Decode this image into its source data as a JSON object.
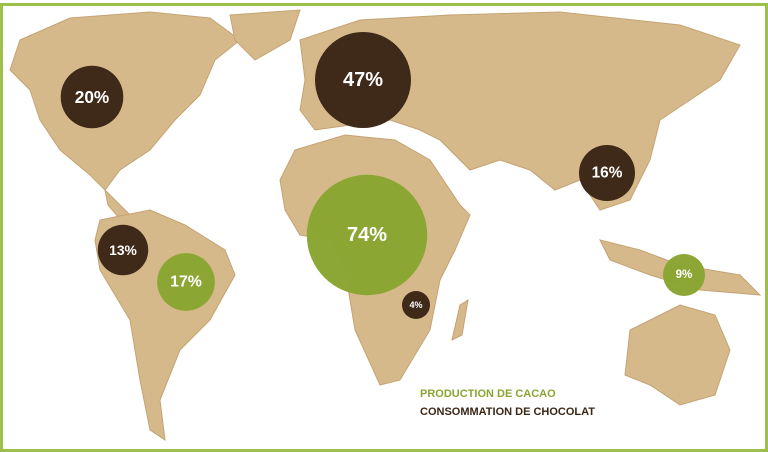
{
  "chart_data": {
    "type": "bubble-map",
    "series": [
      {
        "name": "PRODUCTION DE CACAO",
        "color": "#8aa532",
        "values": [
          17,
          74,
          9
        ],
        "value_labels": [
          "17%",
          "74%",
          "9%"
        ]
      },
      {
        "name": "CONSOMMATION DE CHOCOLAT",
        "color": "#3b2616",
        "values": [
          20,
          47,
          16,
          13,
          4
        ],
        "value_labels": [
          "20%",
          "47%",
          "16%",
          "13%",
          "4%"
        ]
      }
    ]
  }
}
